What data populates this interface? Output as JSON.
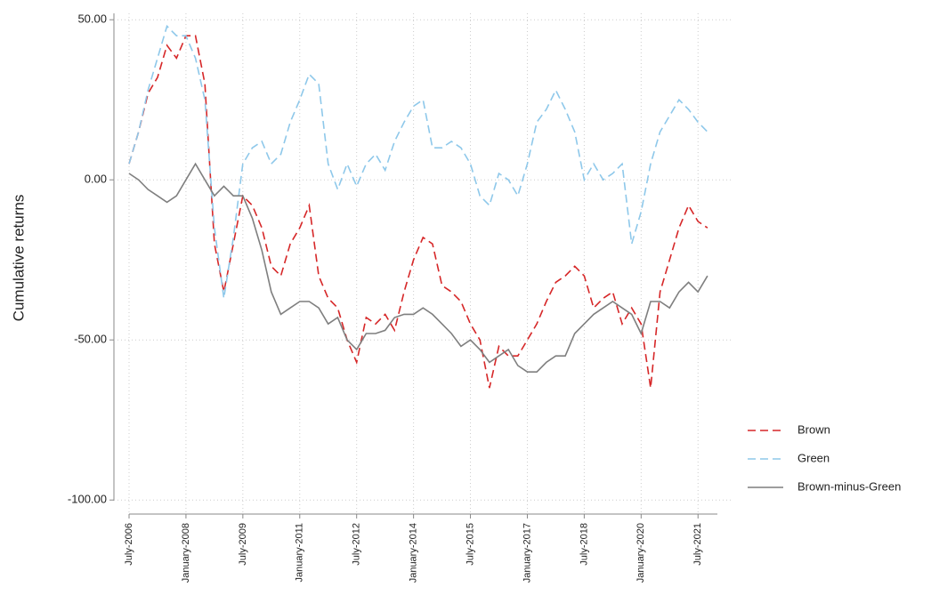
{
  "chart_data": {
    "type": "line",
    "y_label": "Cumulative returns",
    "x": [
      "2006-07",
      "2006-10",
      "2007-01",
      "2007-04",
      "2007-07",
      "2007-10",
      "2008-01",
      "2008-04",
      "2008-07",
      "2008-10",
      "2009-01",
      "2009-04",
      "2009-07",
      "2009-10",
      "2010-01",
      "2010-04",
      "2010-07",
      "2010-10",
      "2011-01",
      "2011-04",
      "2011-07",
      "2011-10",
      "2012-01",
      "2012-04",
      "2012-07",
      "2012-10",
      "2013-01",
      "2013-04",
      "2013-07",
      "2013-10",
      "2014-01",
      "2014-04",
      "2014-07",
      "2014-10",
      "2015-01",
      "2015-04",
      "2015-07",
      "2015-10",
      "2016-01",
      "2016-04",
      "2016-07",
      "2016-10",
      "2017-01",
      "2017-04",
      "2017-07",
      "2017-10",
      "2018-01",
      "2018-04",
      "2018-07",
      "2018-10",
      "2019-01",
      "2019-04",
      "2019-07",
      "2019-10",
      "2020-01",
      "2020-04",
      "2020-07",
      "2020-10",
      "2021-01",
      "2021-04",
      "2021-07",
      "2021-10"
    ],
    "series": [
      {
        "name": "Brown",
        "color": "#d62728",
        "dash": "9,5",
        "values": [
          5,
          15,
          27,
          32,
          42,
          38,
          45,
          45,
          30,
          -20,
          -35,
          -20,
          -5,
          -8,
          -15,
          -27,
          -30,
          -20,
          -15,
          -8,
          -30,
          -37,
          -40,
          -50,
          -57,
          -43,
          -45,
          -42,
          -47,
          -35,
          -25,
          -18,
          -20,
          -33,
          -35,
          -38,
          -45,
          -50,
          -65,
          -52,
          -55,
          -55,
          -50,
          -45,
          -38,
          -32,
          -30,
          -27,
          -30,
          -40,
          -37,
          -35,
          -45,
          -40,
          -45,
          -65,
          -35,
          -25,
          -15,
          -8,
          -13,
          -15
        ]
      },
      {
        "name": "Green",
        "color": "#8ec8ea",
        "dash": "9,5",
        "values": [
          5,
          15,
          28,
          38,
          48,
          45,
          45,
          38,
          25,
          -15,
          -37,
          -18,
          5,
          10,
          12,
          5,
          8,
          18,
          25,
          33,
          30,
          5,
          -3,
          5,
          -2,
          5,
          8,
          3,
          12,
          18,
          23,
          25,
          10,
          10,
          12,
          10,
          5,
          -5,
          -8,
          2,
          0,
          -5,
          5,
          18,
          22,
          28,
          22,
          15,
          0,
          5,
          0,
          2,
          5,
          -20,
          -10,
          5,
          15,
          20,
          25,
          22,
          18,
          15
        ]
      },
      {
        "name": "Brown-minus-Green",
        "color": "#7f7f7f",
        "dash": "none",
        "values": [
          2,
          0,
          -3,
          -5,
          -7,
          -5,
          0,
          5,
          0,
          -5,
          -2,
          -5,
          -5,
          -12,
          -22,
          -35,
          -42,
          -40,
          -38,
          -38,
          -40,
          -45,
          -43,
          -50,
          -53,
          -48,
          -48,
          -47,
          -43,
          -42,
          -42,
          -40,
          -42,
          -45,
          -48,
          -52,
          -50,
          -53,
          -57,
          -55,
          -53,
          -58,
          -60,
          -60,
          -57,
          -55,
          -55,
          -48,
          -45,
          -42,
          -40,
          -38,
          -40,
          -42,
          -48,
          -38,
          -38,
          -40,
          -35,
          -32,
          -35,
          -30
        ]
      }
    ],
    "xlim": [
      "2006-07",
      "2021-12"
    ],
    "xticks": [
      {
        "value": "2006-07",
        "label": "July-2006"
      },
      {
        "value": "2008-01",
        "label": "January-2008"
      },
      {
        "value": "2009-07",
        "label": "July-2009"
      },
      {
        "value": "2011-01",
        "label": "January-2011"
      },
      {
        "value": "2012-07",
        "label": "July-2012"
      },
      {
        "value": "2014-01",
        "label": "January-2014"
      },
      {
        "value": "2015-07",
        "label": "July-2015"
      },
      {
        "value": "2017-01",
        "label": "January-2017"
      },
      {
        "value": "2018-07",
        "label": "July-2018"
      },
      {
        "value": "2020-01",
        "label": "January-2020"
      },
      {
        "value": "2021-07",
        "label": "July-2021"
      }
    ],
    "ylim": [
      -103,
      52
    ],
    "yticks": [
      {
        "value": 50,
        "label": "50.00"
      },
      {
        "value": 0,
        "label": "0.00"
      },
      {
        "value": -50,
        "label": "-50.00"
      },
      {
        "value": -100,
        "label": "-100.00"
      }
    ],
    "grid": true,
    "legend": "right"
  }
}
